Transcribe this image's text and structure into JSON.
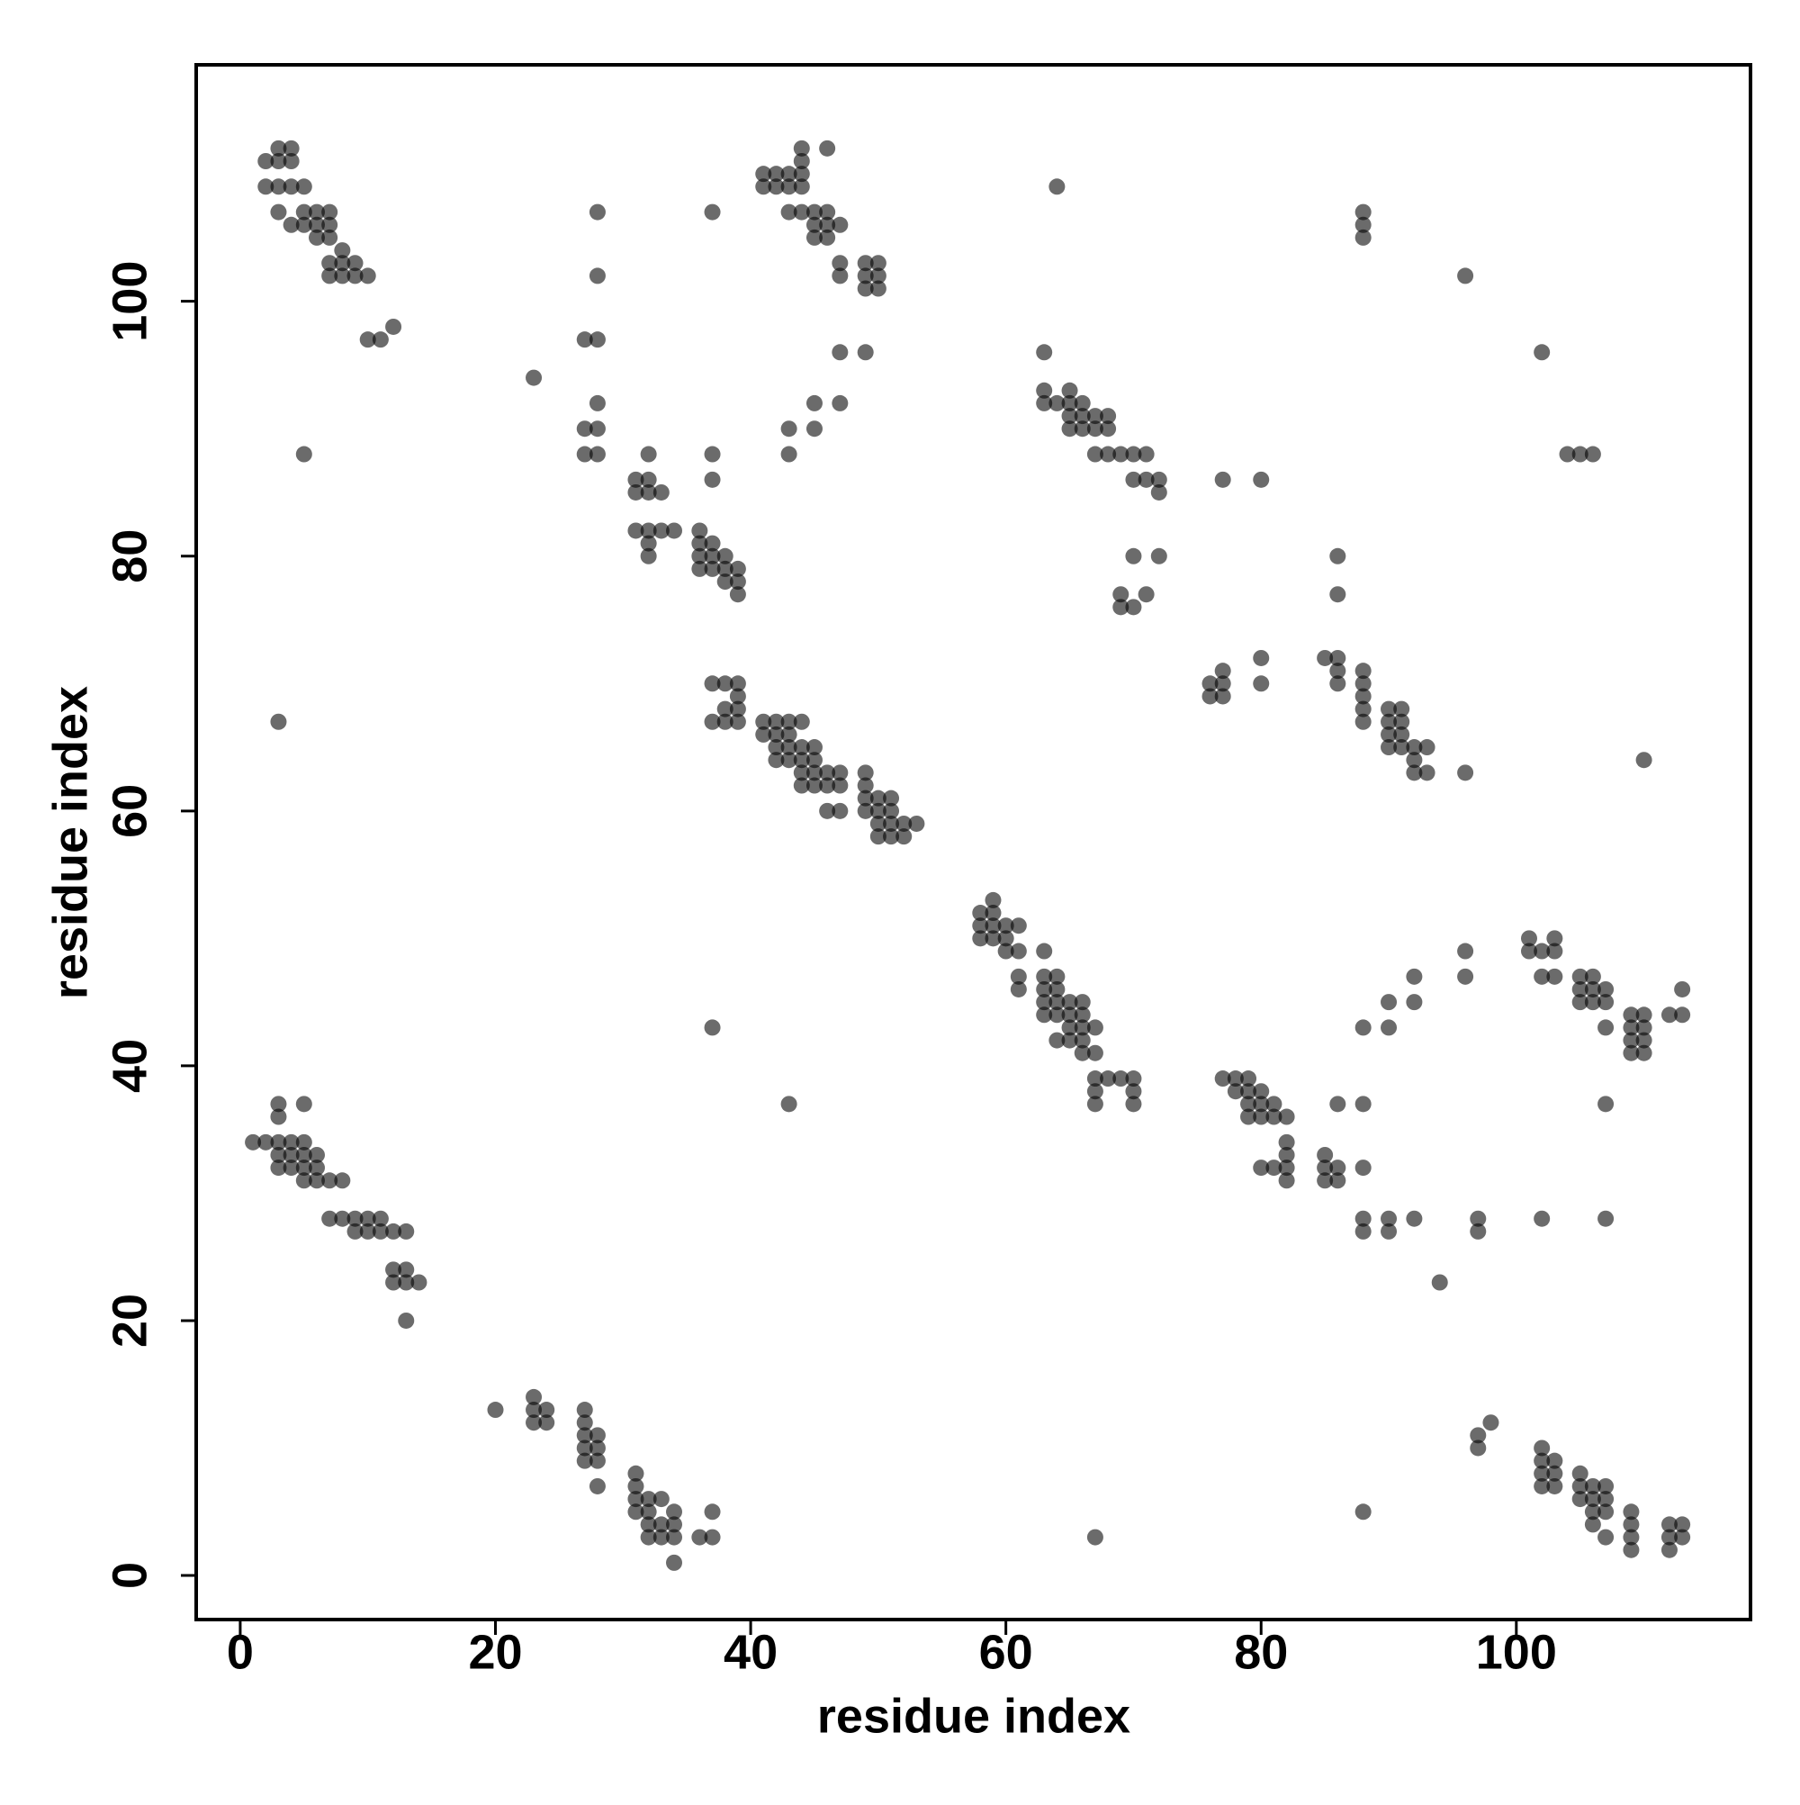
{
  "chart_data": {
    "type": "scatter",
    "x_label": "residue index",
    "y_label": "residue index",
    "xlim": [
      -3.45,
      118.35
    ],
    "ylim": [
      -3.46,
      118.56
    ],
    "xticks": [
      0,
      20,
      40,
      60,
      80,
      100
    ],
    "yticks": [
      0,
      20,
      40,
      60,
      80,
      100
    ],
    "color": "rgba(0,0,0,0.58)",
    "x": [
      3,
      4,
      44,
      46,
      2,
      3,
      4,
      44,
      41,
      42,
      43,
      44,
      2,
      3,
      4,
      5,
      41,
      42,
      43,
      44,
      64,
      3,
      5,
      6,
      7,
      28,
      37,
      43,
      44,
      45,
      46,
      88,
      4,
      5,
      6,
      7,
      45,
      46,
      47,
      88,
      6,
      7,
      45,
      46,
      88,
      8,
      7,
      8,
      9,
      47,
      49,
      50,
      7,
      8,
      9,
      10,
      28,
      47,
      49,
      50,
      96,
      49,
      50,
      12,
      10,
      11,
      27,
      28,
      47,
      49,
      63,
      102,
      23,
      63,
      65,
      28,
      45,
      47,
      63,
      64,
      65,
      66,
      65,
      66,
      67,
      68,
      27,
      28,
      43,
      45,
      65,
      66,
      67,
      68,
      5,
      27,
      28,
      32,
      37,
      43,
      67,
      68,
      69,
      70,
      71,
      104,
      105,
      106,
      31,
      32,
      37,
      70,
      71,
      72,
      77,
      80,
      31,
      32,
      33,
      72,
      31,
      32,
      33,
      34,
      36,
      32,
      36,
      37,
      32,
      36,
      37,
      38,
      70,
      72,
      86,
      36,
      37,
      38,
      39,
      38,
      39,
      39,
      69,
      71,
      86,
      69,
      70,
      80,
      85,
      86,
      77,
      86,
      88,
      37,
      38,
      39,
      76,
      77,
      80,
      86,
      88,
      39,
      76,
      77,
      88,
      38,
      39,
      88,
      90,
      91,
      3,
      37,
      38,
      39,
      41,
      42,
      43,
      44,
      88,
      90,
      91,
      41,
      42,
      43,
      90,
      91,
      42,
      43,
      44,
      45,
      90,
      91,
      92,
      93,
      42,
      43,
      44,
      45,
      92,
      110,
      44,
      45,
      46,
      47,
      49,
      92,
      93,
      96,
      44,
      45,
      46,
      47,
      49,
      49,
      50,
      51,
      46,
      47,
      49,
      50,
      51,
      50,
      51,
      52,
      53,
      50,
      51,
      52,
      59,
      58,
      59,
      58,
      59,
      60,
      61,
      58,
      59,
      60,
      101,
      103,
      60,
      61,
      63,
      96,
      101,
      102,
      103,
      61,
      63,
      64,
      92,
      96,
      102,
      103,
      105,
      106,
      61,
      63,
      64,
      105,
      106,
      107,
      113,
      63,
      64,
      65,
      66,
      90,
      92,
      105,
      106,
      107,
      63,
      64,
      65,
      66,
      109,
      110,
      112,
      113,
      37,
      65,
      66,
      67,
      88,
      90,
      107,
      109,
      110,
      64,
      65,
      66,
      109,
      110,
      66,
      67,
      109,
      110,
      67,
      68,
      69,
      70,
      77,
      78,
      79,
      67,
      70,
      78,
      79,
      80,
      3,
      5,
      43,
      67,
      70,
      79,
      80,
      81,
      86,
      88,
      107,
      3,
      79,
      80,
      81,
      82,
      1,
      2,
      3,
      4,
      5,
      82,
      3,
      4,
      5,
      6,
      82,
      85,
      3,
      4,
      5,
      6,
      80,
      81,
      82,
      85,
      86,
      88,
      5,
      6,
      7,
      8,
      82,
      85,
      86,
      7,
      8,
      9,
      10,
      11,
      88,
      90,
      92,
      97,
      102,
      107,
      9,
      10,
      11,
      12,
      13,
      88,
      90,
      97,
      12,
      13,
      12,
      13,
      14,
      94,
      13,
      23,
      20,
      23,
      24,
      27,
      23,
      24,
      27,
      98,
      27,
      28,
      97,
      27,
      28,
      97,
      102,
      27,
      28,
      102,
      103,
      31,
      102,
      103,
      105,
      28,
      31,
      102,
      103,
      105,
      106,
      107,
      31,
      32,
      33,
      105,
      106,
      107,
      31,
      32,
      34,
      37,
      88,
      106,
      107,
      109,
      32,
      33,
      34,
      106,
      109,
      112,
      113,
      32,
      33,
      34,
      36,
      37,
      67,
      107,
      109,
      112,
      113,
      109,
      112,
      34
    ],
    "values": [
      112,
      112,
      112,
      112,
      111,
      111,
      111,
      111,
      110,
      110,
      110,
      110,
      109,
      109,
      109,
      109,
      109,
      109,
      109,
      109,
      109,
      107,
      107,
      107,
      107,
      107,
      107,
      107,
      107,
      107,
      107,
      107,
      106,
      106,
      106,
      106,
      106,
      106,
      106,
      106,
      105,
      105,
      105,
      105,
      105,
      104,
      103,
      103,
      103,
      103,
      103,
      103,
      102,
      102,
      102,
      102,
      102,
      102,
      102,
      102,
      102,
      101,
      101,
      98,
      97,
      97,
      97,
      97,
      96,
      96,
      96,
      96,
      94,
      93,
      93,
      92,
      92,
      92,
      92,
      92,
      92,
      92,
      91,
      91,
      91,
      91,
      90,
      90,
      90,
      90,
      90,
      90,
      90,
      90,
      88,
      88,
      88,
      88,
      88,
      88,
      88,
      88,
      88,
      88,
      88,
      88,
      88,
      88,
      86,
      86,
      86,
      86,
      86,
      86,
      86,
      86,
      85,
      85,
      85,
      85,
      82,
      82,
      82,
      82,
      82,
      81,
      81,
      81,
      80,
      80,
      80,
      80,
      80,
      80,
      80,
      79,
      79,
      79,
      79,
      78,
      78,
      77,
      77,
      77,
      77,
      76,
      76,
      72,
      72,
      72,
      71,
      71,
      71,
      70,
      70,
      70,
      70,
      70,
      70,
      70,
      70,
      69,
      69,
      69,
      69,
      68,
      68,
      68,
      68,
      68,
      67,
      67,
      67,
      67,
      67,
      67,
      67,
      67,
      67,
      67,
      67,
      66,
      66,
      66,
      66,
      66,
      65,
      65,
      65,
      65,
      65,
      65,
      65,
      65,
      64,
      64,
      64,
      64,
      64,
      64,
      63,
      63,
      63,
      63,
      63,
      63,
      63,
      63,
      62,
      62,
      62,
      62,
      62,
      61,
      61,
      61,
      60,
      60,
      60,
      60,
      60,
      59,
      59,
      59,
      59,
      58,
      58,
      58,
      53,
      52,
      52,
      51,
      51,
      51,
      51,
      50,
      50,
      50,
      50,
      50,
      49,
      49,
      49,
      49,
      49,
      49,
      49,
      47,
      47,
      47,
      47,
      47,
      47,
      47,
      47,
      47,
      46,
      46,
      46,
      46,
      46,
      46,
      46,
      45,
      45,
      45,
      45,
      45,
      45,
      45,
      45,
      45,
      44,
      44,
      44,
      44,
      44,
      44,
      44,
      44,
      43,
      43,
      43,
      43,
      43,
      43,
      43,
      43,
      43,
      42,
      42,
      42,
      42,
      42,
      41,
      41,
      41,
      41,
      39,
      39,
      39,
      39,
      39,
      39,
      39,
      38,
      38,
      38,
      38,
      38,
      37,
      37,
      37,
      37,
      37,
      37,
      37,
      37,
      37,
      37,
      37,
      36,
      36,
      36,
      36,
      36,
      34,
      34,
      34,
      34,
      34,
      34,
      33,
      33,
      33,
      33,
      33,
      33,
      32,
      32,
      32,
      32,
      32,
      32,
      32,
      32,
      32,
      32,
      31,
      31,
      31,
      31,
      31,
      31,
      31,
      28,
      28,
      28,
      28,
      28,
      28,
      28,
      28,
      28,
      28,
      28,
      27,
      27,
      27,
      27,
      27,
      27,
      27,
      27,
      24,
      24,
      23,
      23,
      23,
      23,
      20,
      14,
      13,
      13,
      13,
      13,
      12,
      12,
      12,
      12,
      11,
      11,
      11,
      10,
      10,
      10,
      10,
      9,
      9,
      9,
      9,
      8,
      8,
      8,
      8,
      7,
      7,
      7,
      7,
      7,
      7,
      7,
      6,
      6,
      6,
      6,
      6,
      6,
      5,
      5,
      5,
      5,
      5,
      5,
      5,
      5,
      4,
      4,
      4,
      4,
      4,
      4,
      4,
      3,
      3,
      3,
      3,
      3,
      3,
      3,
      3,
      3,
      3,
      2,
      2,
      1
    ]
  }
}
